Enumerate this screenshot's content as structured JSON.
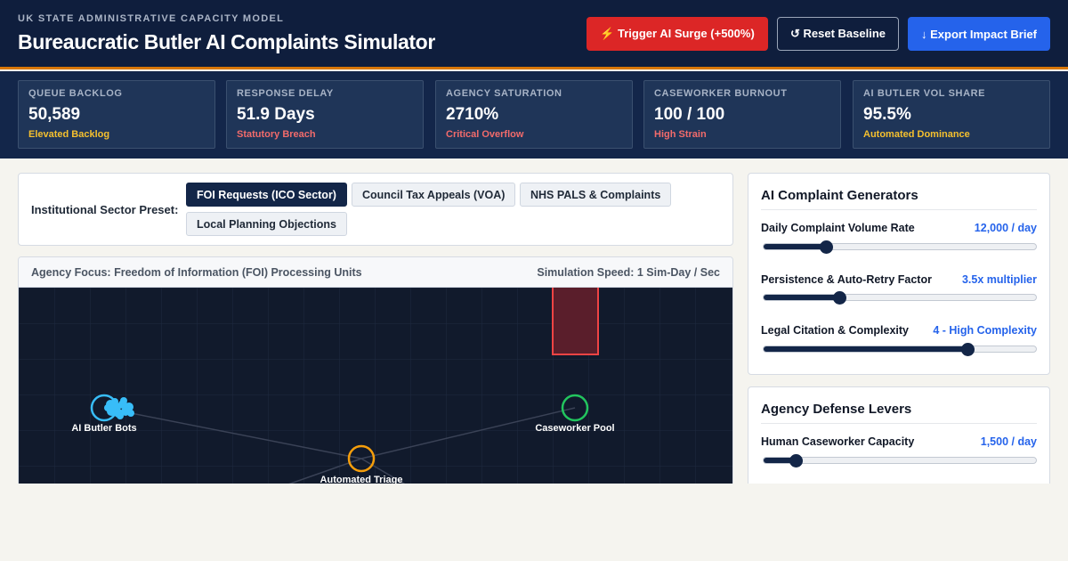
{
  "header": {
    "eyebrow": "UK STATE ADMINISTRATIVE CAPACITY MODEL",
    "title": "Bureaucratic Butler AI Complaints Simulator",
    "surge_label": "⚡ Trigger AI Surge (+500%)",
    "reset_label": "↺ Reset Baseline",
    "export_label": "↓ Export Impact Brief"
  },
  "metrics": [
    {
      "label": "QUEUE BACKLOG",
      "value": "50,589",
      "status": "Elevated Backlog",
      "status_color": "#f5c02e"
    },
    {
      "label": "RESPONSE DELAY",
      "value": "51.9 Days",
      "status": "Statutory Breach",
      "status_color": "#f26b6b"
    },
    {
      "label": "AGENCY SATURATION",
      "value": "2710%",
      "status": "Critical Overflow",
      "status_color": "#f26b6b"
    },
    {
      "label": "CASEWORKER BURNOUT",
      "value": "100 / 100",
      "status": "High Strain",
      "status_color": "#f26b6b"
    },
    {
      "label": "AI BUTLER VOL SHARE",
      "value": "95.5%",
      "status": "Automated Dominance",
      "status_color": "#f5c02e"
    }
  ],
  "preset": {
    "label": "Institutional Sector Preset:",
    "options": [
      "FOI Requests (ICO Sector)",
      "Council Tax Appeals (VOA)",
      "NHS PALS & Complaints",
      "Local Planning Objections"
    ],
    "active_index": 0
  },
  "simulation": {
    "focus": "Agency Focus: Freedom of Information (FOI) Processing Units",
    "speed": "Simulation Speed: 1 Sim-Day / Sec",
    "nodes": {
      "ai_bots": "AI Butler Bots",
      "caseworker": "Caseworker Pool",
      "triage": "Automated Triage"
    },
    "colors": {
      "ai_bots": "#38bdf8",
      "caseworker": "#22c55e",
      "triage": "#f59e0b",
      "backlog_bar": "#ef4444"
    }
  },
  "generators": {
    "title": "AI Complaint Generators",
    "controls": [
      {
        "label": "Daily Complaint Volume Rate",
        "value": "12,000 / day",
        "level": 0.23
      },
      {
        "label": "Persistence & Auto-Retry Factor",
        "value": "3.5x multiplier",
        "level": 0.28
      },
      {
        "label": "Legal Citation & Complexity",
        "value": "4 - High Complexity",
        "level": 0.75
      }
    ]
  },
  "defense": {
    "title": "Agency Defense Levers",
    "controls": [
      {
        "label": "Human Caseworker Capacity",
        "value": "1,500 / day",
        "level": 0.12
      }
    ]
  }
}
